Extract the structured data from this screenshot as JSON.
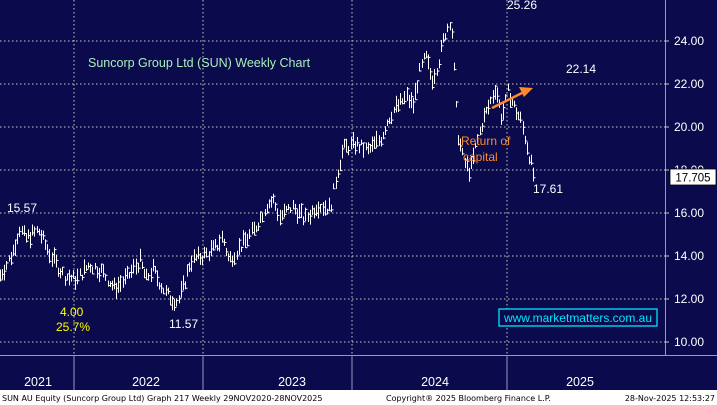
{
  "chart_data": {
    "type": "line",
    "title": "Suncorp Group Ltd (SUN) Weekly Chart",
    "ylim": [
      9.3,
      25.6
    ],
    "y_ticks": [
      "10.00",
      "12.00",
      "14.00",
      "16.00",
      "18.00",
      "20.00",
      "22.00",
      "24.00"
    ],
    "x_ticks": [
      "2021",
      "2022",
      "2023",
      "2024",
      "2025"
    ],
    "last_price": "17.705",
    "annotations": {
      "high_2021": "15.57",
      "div_value": "4.00",
      "div_pct": "25.7%",
      "low_2022": "11.57",
      "peak": "25.26",
      "high_2025": "22.14",
      "low_2025": "17.61",
      "return_line1": "Return of",
      "return_line2": "capital"
    },
    "source": "www.marketmatters.com.au",
    "series": [
      {
        "values": [
          {
            "x": 0.0,
            "y": 13.1
          },
          {
            "x": 0.05,
            "y": 13.6
          },
          {
            "x": 0.1,
            "y": 14.2
          },
          {
            "x": 0.15,
            "y": 15.3
          },
          {
            "x": 0.2,
            "y": 14.8
          },
          {
            "x": 0.3,
            "y": 15.2
          },
          {
            "x": 0.4,
            "y": 14.0
          },
          {
            "x": 0.5,
            "y": 13.1
          },
          {
            "x": 0.6,
            "y": 12.9
          },
          {
            "x": 0.7,
            "y": 13.6
          },
          {
            "x": 0.8,
            "y": 13.3
          },
          {
            "x": 0.9,
            "y": 12.5
          },
          {
            "x": 1.0,
            "y": 13.0
          },
          {
            "x": 1.1,
            "y": 13.8
          },
          {
            "x": 1.15,
            "y": 12.9
          },
          {
            "x": 1.2,
            "y": 13.4
          },
          {
            "x": 1.3,
            "y": 12.3
          },
          {
            "x": 1.35,
            "y": 12.0
          },
          {
            "x": 1.4,
            "y": 11.9
          },
          {
            "x": 1.45,
            "y": 12.7
          },
          {
            "x": 1.5,
            "y": 13.8
          },
          {
            "x": 1.6,
            "y": 14.0
          },
          {
            "x": 1.7,
            "y": 14.4
          },
          {
            "x": 1.75,
            "y": 14.9
          },
          {
            "x": 1.8,
            "y": 13.8
          },
          {
            "x": 1.9,
            "y": 14.5
          },
          {
            "x": 2.0,
            "y": 15.2
          },
          {
            "x": 2.1,
            "y": 16.4
          },
          {
            "x": 2.15,
            "y": 16.6
          },
          {
            "x": 2.2,
            "y": 15.8
          },
          {
            "x": 2.3,
            "y": 16.3
          },
          {
            "x": 2.4,
            "y": 15.7
          },
          {
            "x": 2.5,
            "y": 16.4
          },
          {
            "x": 2.6,
            "y": 16.2
          },
          {
            "x": 2.65,
            "y": 17.8
          },
          {
            "x": 2.7,
            "y": 19.0
          },
          {
            "x": 2.8,
            "y": 19.2
          },
          {
            "x": 2.9,
            "y": 18.9
          },
          {
            "x": 3.0,
            "y": 19.5
          },
          {
            "x": 3.05,
            "y": 20.3
          },
          {
            "x": 3.1,
            "y": 20.8
          },
          {
            "x": 3.2,
            "y": 21.4
          },
          {
            "x": 3.25,
            "y": 21.0
          },
          {
            "x": 3.3,
            "y": 22.5
          },
          {
            "x": 3.35,
            "y": 23.3
          },
          {
            "x": 3.4,
            "y": 22.2
          },
          {
            "x": 3.45,
            "y": 23.0
          },
          {
            "x": 3.5,
            "y": 24.3
          },
          {
            "x": 3.55,
            "y": 25.1
          },
          {
            "x": 3.6,
            "y": 19.8
          },
          {
            "x": 3.65,
            "y": 18.4
          },
          {
            "x": 3.7,
            "y": 17.9
          },
          {
            "x": 3.75,
            "y": 19.2
          },
          {
            "x": 3.8,
            "y": 20.3
          },
          {
            "x": 3.85,
            "y": 21.0
          },
          {
            "x": 3.9,
            "y": 21.9
          },
          {
            "x": 3.95,
            "y": 20.4
          },
          {
            "x": 4.0,
            "y": 21.7
          },
          {
            "x": 4.05,
            "y": 20.9
          },
          {
            "x": 4.1,
            "y": 20.3
          },
          {
            "x": 4.15,
            "y": 19.1
          },
          {
            "x": 4.2,
            "y": 17.8
          }
        ]
      }
    ]
  },
  "footer": {
    "left": "SUN AU Equity (Suncorp Group Ltd) Graph 217 Weekly 29NOV2020-28NOV2025",
    "center": "Copyright® 2025 Bloomberg Finance L.P.",
    "right": "28-Nov-2025 12:53:27"
  },
  "colors": {
    "background": "#0a0a4d",
    "grid": "#c8c8c8",
    "title": "#a8f0b8",
    "accent": "#ff8a2a",
    "yellow": "#ffff00",
    "link": "#00e5ff"
  }
}
